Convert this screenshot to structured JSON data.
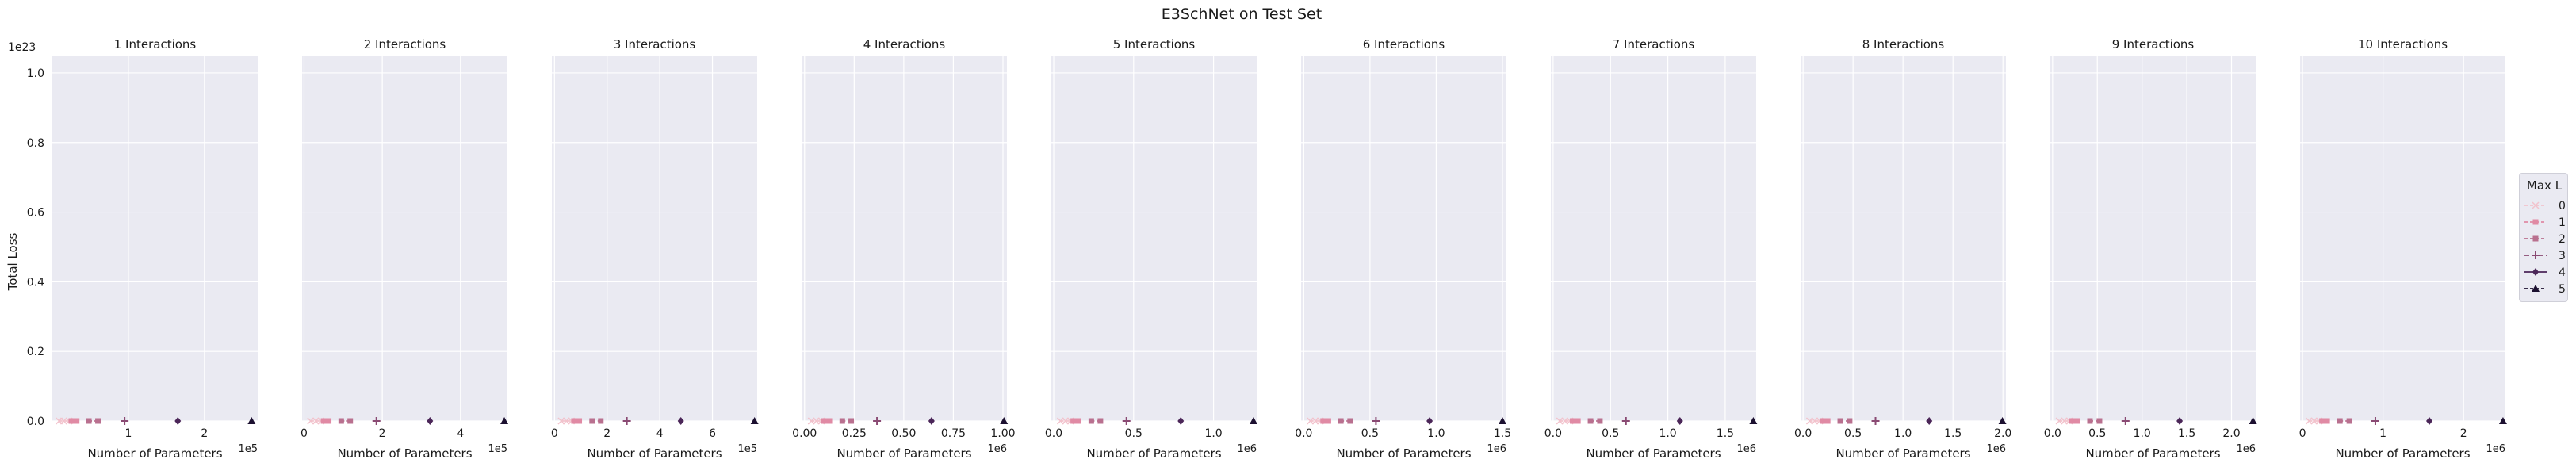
{
  "figure": {
    "suptitle": "E3SchNet on Test Set",
    "ylabel": "Total Loss",
    "y_offset_label": "1e23"
  },
  "legend": {
    "title": "Max L",
    "entries": [
      "0",
      "1",
      "2",
      "3",
      "4",
      "5"
    ]
  },
  "colors": {
    "axes_bg": "#eaeaf2",
    "grid": "#ffffff",
    "series": [
      "#f2c2cc",
      "#e08aa4",
      "#b9708f",
      "#8a4a73",
      "#4b2658",
      "#1c1030"
    ]
  },
  "chart_data": [
    {
      "type": "line",
      "title": "1 Interactions",
      "xlabel": "Number of Parameters",
      "x_offset_label": "1e5",
      "xticks": [
        "1",
        "2"
      ],
      "xtick_values": [
        100000,
        200000
      ],
      "xlim": [
        0,
        270000
      ],
      "ylim": [
        0,
        1.05e+23
      ],
      "yticks": [
        "0.0",
        "0.2",
        "0.4",
        "0.6",
        "0.8",
        "1.0"
      ],
      "series": [
        {
          "name": "0",
          "points": [
            [
              9000,
              0
            ],
            [
              15000,
              0
            ],
            [
              22000,
              0
            ]
          ]
        },
        {
          "name": "1",
          "points": [
            [
              25000,
              0
            ],
            [
              32000,
              0
            ]
          ]
        },
        {
          "name": "2",
          "points": [
            [
              48000,
              0
            ],
            [
              60000,
              0
            ]
          ]
        },
        {
          "name": "3",
          "points": [
            [
              95000,
              0
            ]
          ]
        },
        {
          "name": "4",
          "points": [
            [
              165000,
              0
            ]
          ]
        },
        {
          "name": "5",
          "points": [
            [
              262000,
              0
            ]
          ]
        }
      ]
    },
    {
      "type": "line",
      "title": "2 Interactions",
      "xlabel": "Number of Parameters",
      "x_offset_label": "1e5",
      "xticks": [
        "0",
        "2",
        "4"
      ],
      "xtick_values": [
        0,
        200000,
        400000
      ],
      "xlim": [
        -5000,
        520000
      ],
      "series": [
        {
          "name": "0",
          "points": [
            [
              17000,
              0
            ],
            [
              30000,
              0
            ],
            [
              43000,
              0
            ]
          ]
        },
        {
          "name": "1",
          "points": [
            [
              50000,
              0
            ],
            [
              63000,
              0
            ]
          ]
        },
        {
          "name": "2",
          "points": [
            [
              95000,
              0
            ],
            [
              118000,
              0
            ]
          ]
        },
        {
          "name": "3",
          "points": [
            [
              185000,
              0
            ]
          ]
        },
        {
          "name": "4",
          "points": [
            [
              322000,
              0
            ]
          ]
        },
        {
          "name": "5",
          "points": [
            [
              512000,
              0
            ]
          ]
        }
      ]
    },
    {
      "type": "line",
      "title": "3 Interactions",
      "xlabel": "Number of Parameters",
      "x_offset_label": "1e5",
      "xticks": [
        "0",
        "2",
        "4",
        "6"
      ],
      "xtick_values": [
        0,
        200000,
        400000,
        600000
      ],
      "xlim": [
        -10000,
        770000
      ],
      "series": [
        {
          "name": "0",
          "points": [
            [
              26000,
              0
            ],
            [
              45000,
              0
            ],
            [
              64000,
              0
            ]
          ]
        },
        {
          "name": "1",
          "points": [
            [
              74000,
              0
            ],
            [
              94000,
              0
            ]
          ]
        },
        {
          "name": "2",
          "points": [
            [
              143000,
              0
            ],
            [
              176000,
              0
            ]
          ]
        },
        {
          "name": "3",
          "points": [
            [
              275000,
              0
            ]
          ]
        },
        {
          "name": "4",
          "points": [
            [
              480000,
              0
            ]
          ]
        },
        {
          "name": "5",
          "points": [
            [
              760000,
              0
            ]
          ]
        }
      ]
    },
    {
      "type": "line",
      "title": "4 Interactions",
      "xlabel": "Number of Parameters",
      "x_offset_label": "1e6",
      "xticks": [
        "0.00",
        "0.25",
        "0.50",
        "0.75",
        "1.00"
      ],
      "xtick_values": [
        0,
        250000,
        500000,
        750000,
        1000000
      ],
      "xlim": [
        -15000,
        1020000
      ],
      "series": [
        {
          "name": "0",
          "points": [
            [
              34000,
              0
            ],
            [
              59000,
              0
            ],
            [
              84000,
              0
            ]
          ]
        },
        {
          "name": "1",
          "points": [
            [
              98000,
              0
            ],
            [
              125000,
              0
            ]
          ]
        },
        {
          "name": "2",
          "points": [
            [
              190000,
              0
            ],
            [
              235000,
              0
            ]
          ]
        },
        {
          "name": "3",
          "points": [
            [
              365000,
              0
            ]
          ]
        },
        {
          "name": "4",
          "points": [
            [
              640000,
              0
            ]
          ]
        },
        {
          "name": "5",
          "points": [
            [
              1005000,
              0
            ]
          ]
        }
      ]
    },
    {
      "type": "line",
      "title": "5 Interactions",
      "xlabel": "Number of Parameters",
      "x_offset_label": "1e6",
      "xticks": [
        "0.0",
        "0.5",
        "1.0"
      ],
      "xtick_values": [
        0,
        500000,
        1000000
      ],
      "xlim": [
        -15000,
        1270000
      ],
      "series": [
        {
          "name": "0",
          "points": [
            [
              42000,
              0
            ],
            [
              73000,
              0
            ],
            [
              104000,
              0
            ]
          ]
        },
        {
          "name": "1",
          "points": [
            [
              122000,
              0
            ],
            [
              155000,
              0
            ]
          ]
        },
        {
          "name": "2",
          "points": [
            [
              235000,
              0
            ],
            [
              292000,
              0
            ]
          ]
        },
        {
          "name": "3",
          "points": [
            [
              455000,
              0
            ]
          ]
        },
        {
          "name": "4",
          "points": [
            [
              795000,
              0
            ]
          ]
        },
        {
          "name": "5",
          "points": [
            [
              1250000,
              0
            ]
          ]
        }
      ]
    },
    {
      "type": "line",
      "title": "6 Interactions",
      "xlabel": "Number of Parameters",
      "x_offset_label": "1e6",
      "xticks": [
        "0.0",
        "0.5",
        "1.0",
        "1.5"
      ],
      "xtick_values": [
        0,
        500000,
        1000000,
        1500000
      ],
      "xlim": [
        -20000,
        1530000
      ],
      "series": [
        {
          "name": "0",
          "points": [
            [
              50000,
              0
            ],
            [
              88000,
              0
            ],
            [
              125000,
              0
            ]
          ]
        },
        {
          "name": "1",
          "points": [
            [
              146000,
              0
            ],
            [
              186000,
              0
            ]
          ]
        },
        {
          "name": "2",
          "points": [
            [
              280000,
              0
            ],
            [
              350000,
              0
            ]
          ]
        },
        {
          "name": "3",
          "points": [
            [
              545000,
              0
            ]
          ]
        },
        {
          "name": "4",
          "points": [
            [
              950000,
              0
            ]
          ]
        },
        {
          "name": "5",
          "points": [
            [
              1500000,
              0
            ]
          ]
        }
      ]
    },
    {
      "type": "line",
      "title": "7 Interactions",
      "xlabel": "Number of Parameters",
      "x_offset_label": "1e6",
      "xticks": [
        "0.0",
        "0.5",
        "1.0",
        "1.5"
      ],
      "xtick_values": [
        0,
        500000,
        1000000,
        1500000
      ],
      "xlim": [
        -20000,
        1770000
      ],
      "series": [
        {
          "name": "0",
          "points": [
            [
              58000,
              0
            ],
            [
              102000,
              0
            ],
            [
              146000,
              0
            ]
          ]
        },
        {
          "name": "1",
          "points": [
            [
              170000,
              0
            ],
            [
              216000,
              0
            ]
          ]
        },
        {
          "name": "2",
          "points": [
            [
              326000,
              0
            ],
            [
              408000,
              0
            ]
          ]
        },
        {
          "name": "3",
          "points": [
            [
              635000,
              0
            ]
          ]
        },
        {
          "name": "4",
          "points": [
            [
              1105000,
              0
            ]
          ]
        },
        {
          "name": "5",
          "points": [
            [
              1745000,
              0
            ]
          ]
        }
      ]
    },
    {
      "type": "line",
      "title": "8 Interactions",
      "xlabel": "Number of Parameters",
      "x_offset_label": "1e6",
      "xticks": [
        "0.0",
        "0.5",
        "1.0",
        "1.5",
        "2.0"
      ],
      "xtick_values": [
        0,
        500000,
        1000000,
        1500000,
        2000000
      ],
      "xlim": [
        -25000,
        2030000
      ],
      "series": [
        {
          "name": "0",
          "points": [
            [
              66000,
              0
            ],
            [
              116000,
              0
            ],
            [
              166000,
              0
            ]
          ]
        },
        {
          "name": "1",
          "points": [
            [
              194000,
              0
            ],
            [
              246000,
              0
            ]
          ]
        },
        {
          "name": "2",
          "points": [
            [
              372000,
              0
            ],
            [
              466000,
              0
            ]
          ]
        },
        {
          "name": "3",
          "points": [
            [
              725000,
              0
            ]
          ]
        },
        {
          "name": "4",
          "points": [
            [
              1262000,
              0
            ]
          ]
        },
        {
          "name": "5",
          "points": [
            [
              1995000,
              0
            ]
          ]
        }
      ]
    },
    {
      "type": "line",
      "title": "9 Interactions",
      "xlabel": "Number of Parameters",
      "x_offset_label": "1e6",
      "xticks": [
        "0.0",
        "0.5",
        "1.0",
        "1.5",
        "2.0"
      ],
      "xtick_values": [
        0,
        500000,
        1000000,
        1500000,
        2000000
      ],
      "xlim": [
        -25000,
        2270000
      ],
      "series": [
        {
          "name": "0",
          "points": [
            [
              74000,
              0
            ],
            [
              130000,
              0
            ],
            [
              186000,
              0
            ]
          ]
        },
        {
          "name": "1",
          "points": [
            [
              218000,
              0
            ],
            [
              276000,
              0
            ]
          ]
        },
        {
          "name": "2",
          "points": [
            [
              418000,
              0
            ],
            [
              524000,
              0
            ]
          ]
        },
        {
          "name": "3",
          "points": [
            [
              815000,
              0
            ]
          ]
        },
        {
          "name": "4",
          "points": [
            [
              1420000,
              0
            ]
          ]
        },
        {
          "name": "5",
          "points": [
            [
              2240000,
              0
            ]
          ]
        }
      ]
    },
    {
      "type": "line",
      "title": "10 Interactions",
      "xlabel": "Number of Parameters",
      "x_offset_label": "1e6",
      "xticks": [
        "0",
        "1",
        "2"
      ],
      "xtick_values": [
        0,
        1000000,
        2000000
      ],
      "xlim": [
        -30000,
        2520000
      ],
      "series": [
        {
          "name": "0",
          "points": [
            [
              82000,
              0
            ],
            [
              144000,
              0
            ],
            [
              206000,
              0
            ]
          ]
        },
        {
          "name": "1",
          "points": [
            [
              242000,
              0
            ],
            [
              306000,
              0
            ]
          ]
        },
        {
          "name": "2",
          "points": [
            [
              464000,
              0
            ],
            [
              582000,
              0
            ]
          ]
        },
        {
          "name": "3",
          "points": [
            [
              905000,
              0
            ]
          ]
        },
        {
          "name": "4",
          "points": [
            [
              1575000,
              0
            ]
          ]
        },
        {
          "name": "5",
          "points": [
            [
              2490000,
              0
            ]
          ]
        }
      ]
    }
  ]
}
